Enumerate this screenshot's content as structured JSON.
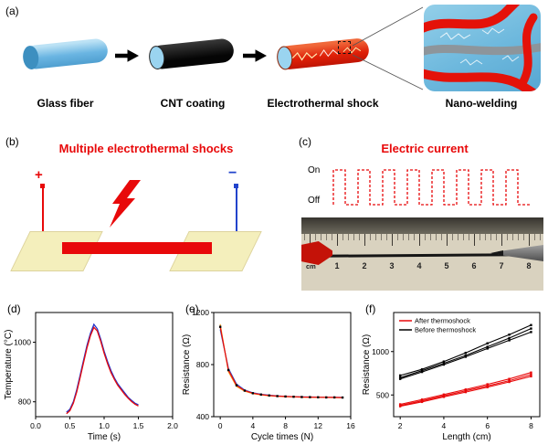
{
  "panel_a": {
    "label": "(a)",
    "captions": {
      "glass_fiber": "Glass fiber",
      "cnt_coating": "CNT coating",
      "electrothermal_shock": "Electrothermal shock",
      "nano_welding": "Nano-welding"
    }
  },
  "panel_b": {
    "label": "(b)",
    "title": "Multiple electrothermal shocks",
    "plus_symbol": "+",
    "minus_symbol": "−"
  },
  "panel_c": {
    "label": "(c)",
    "title": "Electric current",
    "on_label": "On",
    "off_label": "Off",
    "ruler_unit": "cm",
    "ruler_numbers": [
      "1",
      "2",
      "3",
      "4",
      "5",
      "6",
      "7",
      "8"
    ]
  },
  "panel_d": {
    "label": "(d)"
  },
  "panel_e": {
    "label": "(e)"
  },
  "panel_f": {
    "label": "(f)"
  },
  "colors": {
    "accent_red": "#e8090a",
    "electrode_blue": "#2244cc",
    "glass_blue": "#6ab5e2",
    "pad_yellow": "#f4efbc"
  },
  "chart_data": [
    {
      "id": "d",
      "type": "line",
      "xlabel": "Time (s)",
      "ylabel": "Temperature (°C)",
      "xlim": [
        0,
        2
      ],
      "ylim": [
        750,
        1100
      ],
      "xtick_vals": [
        0,
        0.5,
        1,
        1.5,
        2
      ],
      "xtick_labels": [
        "0.0",
        "0.5",
        "1.0",
        "1.5",
        "2.0"
      ],
      "ytick_vals": [
        800,
        1000
      ],
      "ytick_labels": [
        "800",
        "1000"
      ],
      "x": [
        0.45,
        0.5,
        0.55,
        0.6,
        0.65,
        0.7,
        0.75,
        0.8,
        0.85,
        0.9,
        0.95,
        1.0,
        1.05,
        1.1,
        1.15,
        1.2,
        1.25,
        1.3,
        1.35,
        1.4,
        1.45,
        1.5
      ],
      "series": [
        {
          "name": null,
          "color": "#2233cc",
          "width": 1.3,
          "marker": false,
          "y": [
            765,
            775,
            800,
            840,
            890,
            940,
            990,
            1030,
            1060,
            1045,
            1010,
            970,
            935,
            905,
            880,
            860,
            845,
            830,
            815,
            805,
            795,
            790
          ]
        },
        {
          "name": null,
          "color": "#e8090a",
          "width": 1.3,
          "marker": false,
          "y": [
            760,
            770,
            795,
            833,
            882,
            932,
            982,
            1022,
            1050,
            1038,
            1003,
            963,
            928,
            898,
            875,
            855,
            840,
            825,
            812,
            801,
            792,
            786
          ]
        }
      ]
    },
    {
      "id": "e",
      "type": "line",
      "xlabel": "Cycle times (N)",
      "ylabel": "Resistance (Ω)",
      "xlim": [
        -0.8,
        16
      ],
      "ylim": [
        400,
        1200
      ],
      "xtick_vals": [
        0,
        4,
        8,
        12,
        16
      ],
      "xtick_labels": [
        "0",
        "4",
        "8",
        "12",
        "16"
      ],
      "ytick_vals": [
        400,
        800,
        1200
      ],
      "ytick_labels": [
        "400",
        "800",
        "1200"
      ],
      "x": [
        0,
        1,
        2,
        3,
        4,
        5,
        6,
        7,
        8,
        9,
        10,
        11,
        12,
        13,
        14,
        15
      ],
      "series": [
        {
          "name": null,
          "color": "#3355cc",
          "width": 1.2,
          "marker": false,
          "y": [
            1070,
            770,
            650,
            605,
            583,
            572,
            565,
            560,
            556,
            554,
            552,
            551,
            550,
            549,
            548,
            548
          ]
        },
        {
          "name": null,
          "color": "#f59a1d",
          "width": 1.2,
          "marker": false,
          "y": [
            1110,
            745,
            632,
            596,
            577,
            568,
            561,
            557,
            554,
            552,
            550,
            549,
            548,
            548,
            547,
            547
          ]
        },
        {
          "name": null,
          "color": "#e8090a",
          "width": 1.2,
          "marker": true,
          "marker_color": "#000000",
          "y": [
            1090,
            758,
            641,
            600,
            580,
            570,
            563,
            558,
            555,
            553,
            551,
            550,
            549,
            548,
            548,
            547
          ]
        }
      ]
    },
    {
      "id": "f",
      "type": "line",
      "xlabel": "Length (cm)",
      "ylabel": "Resistance (Ω)",
      "xlim": [
        1.7,
        8.4
      ],
      "ylim": [
        250,
        1450
      ],
      "xtick_vals": [
        2,
        4,
        6,
        8
      ],
      "xtick_labels": [
        "2",
        "4",
        "6",
        "8"
      ],
      "ytick_vals": [
        500,
        1000
      ],
      "ytick_labels": [
        "500",
        "1000"
      ],
      "x": [
        2,
        3,
        4,
        5,
        6,
        7,
        8
      ],
      "series": [
        {
          "name": "Before thermoshock",
          "color": "#000000",
          "width": 1.1,
          "marker": true,
          "y": [
            700,
            780,
            865,
            955,
            1055,
            1155,
            1265
          ]
        },
        {
          "name": null,
          "color": "#000000",
          "width": 1.1,
          "marker": true,
          "y": [
            725,
            795,
            885,
            985,
            1095,
            1195,
            1305
          ]
        },
        {
          "name": null,
          "color": "#000000",
          "width": 1.1,
          "marker": true,
          "y": [
            685,
            765,
            850,
            940,
            1035,
            1130,
            1225
          ]
        },
        {
          "name": "After thermoshock",
          "color": "#e8090a",
          "width": 1.1,
          "marker": true,
          "y": [
            380,
            432,
            490,
            548,
            605,
            665,
            735
          ]
        },
        {
          "name": null,
          "color": "#e8090a",
          "width": 1.1,
          "marker": true,
          "y": [
            392,
            447,
            505,
            563,
            623,
            685,
            758
          ]
        },
        {
          "name": null,
          "color": "#e8090a",
          "width": 1.1,
          "marker": true,
          "y": [
            370,
            420,
            478,
            533,
            590,
            650,
            715
          ]
        }
      ],
      "legend": [
        {
          "label": "After thermoshock",
          "color": "#e8090a"
        },
        {
          "label": "Before thermoshock",
          "color": "#000000"
        }
      ]
    }
  ]
}
